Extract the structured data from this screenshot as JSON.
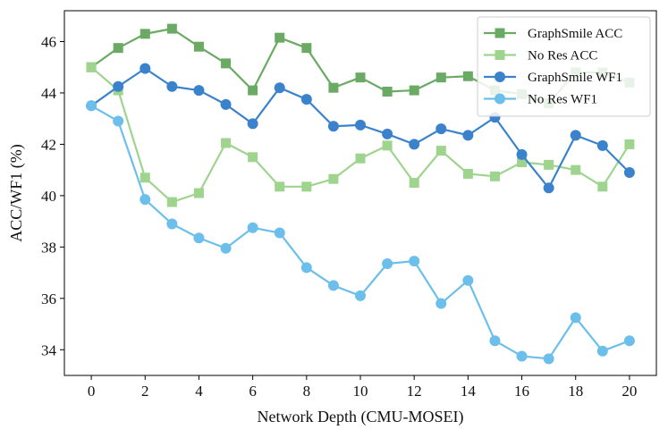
{
  "chart_data": {
    "type": "line",
    "title": "",
    "xlabel": "Network Depth (CMU-MOSEI)",
    "ylabel": "ACC/WF1 (%)",
    "x": [
      0,
      1,
      2,
      3,
      4,
      5,
      6,
      7,
      8,
      9,
      10,
      11,
      12,
      13,
      14,
      15,
      16,
      17,
      18,
      19,
      20
    ],
    "xticks": [
      0,
      2,
      4,
      6,
      8,
      10,
      12,
      14,
      16,
      18,
      20
    ],
    "yticks": [
      34,
      36,
      38,
      40,
      42,
      44,
      46
    ],
    "xlim": [
      -1.0,
      21.0
    ],
    "ylim": [
      33.0,
      47.2
    ],
    "legend_position": "top-right",
    "series": [
      {
        "name": "GraphSmile ACC",
        "color": "#6aaa64",
        "marker": "square",
        "values": [
          45.0,
          45.75,
          46.3,
          46.5,
          45.8,
          45.15,
          44.1,
          46.15,
          45.75,
          44.2,
          44.6,
          44.05,
          44.1,
          44.6,
          44.65,
          44.1,
          43.95,
          43.6,
          44.8,
          44.8,
          44.4
        ]
      },
      {
        "name": "No Res ACC",
        "color": "#9fd48f",
        "marker": "square",
        "values": [
          45.0,
          44.1,
          40.7,
          39.75,
          40.1,
          42.05,
          41.5,
          40.35,
          40.35,
          40.65,
          41.45,
          41.95,
          40.5,
          41.75,
          40.85,
          40.75,
          41.3,
          41.2,
          41.0,
          40.35,
          42.0
        ]
      },
      {
        "name": "GraphSmile WF1",
        "color": "#3a82cc",
        "marker": "circle",
        "values": [
          43.5,
          44.25,
          44.95,
          44.25,
          44.1,
          43.55,
          42.8,
          44.2,
          43.75,
          42.7,
          42.75,
          42.4,
          42.0,
          42.6,
          42.35,
          43.05,
          41.6,
          40.3,
          42.35,
          41.95,
          40.9
        ]
      },
      {
        "name": "No Res WF1",
        "color": "#6bbfea",
        "marker": "circle",
        "values": [
          43.5,
          42.9,
          39.85,
          38.9,
          38.35,
          37.95,
          38.75,
          38.55,
          37.2,
          36.5,
          36.1,
          37.35,
          37.45,
          35.8,
          36.7,
          34.35,
          33.75,
          33.65,
          35.25,
          33.95,
          34.35
        ]
      }
    ]
  }
}
